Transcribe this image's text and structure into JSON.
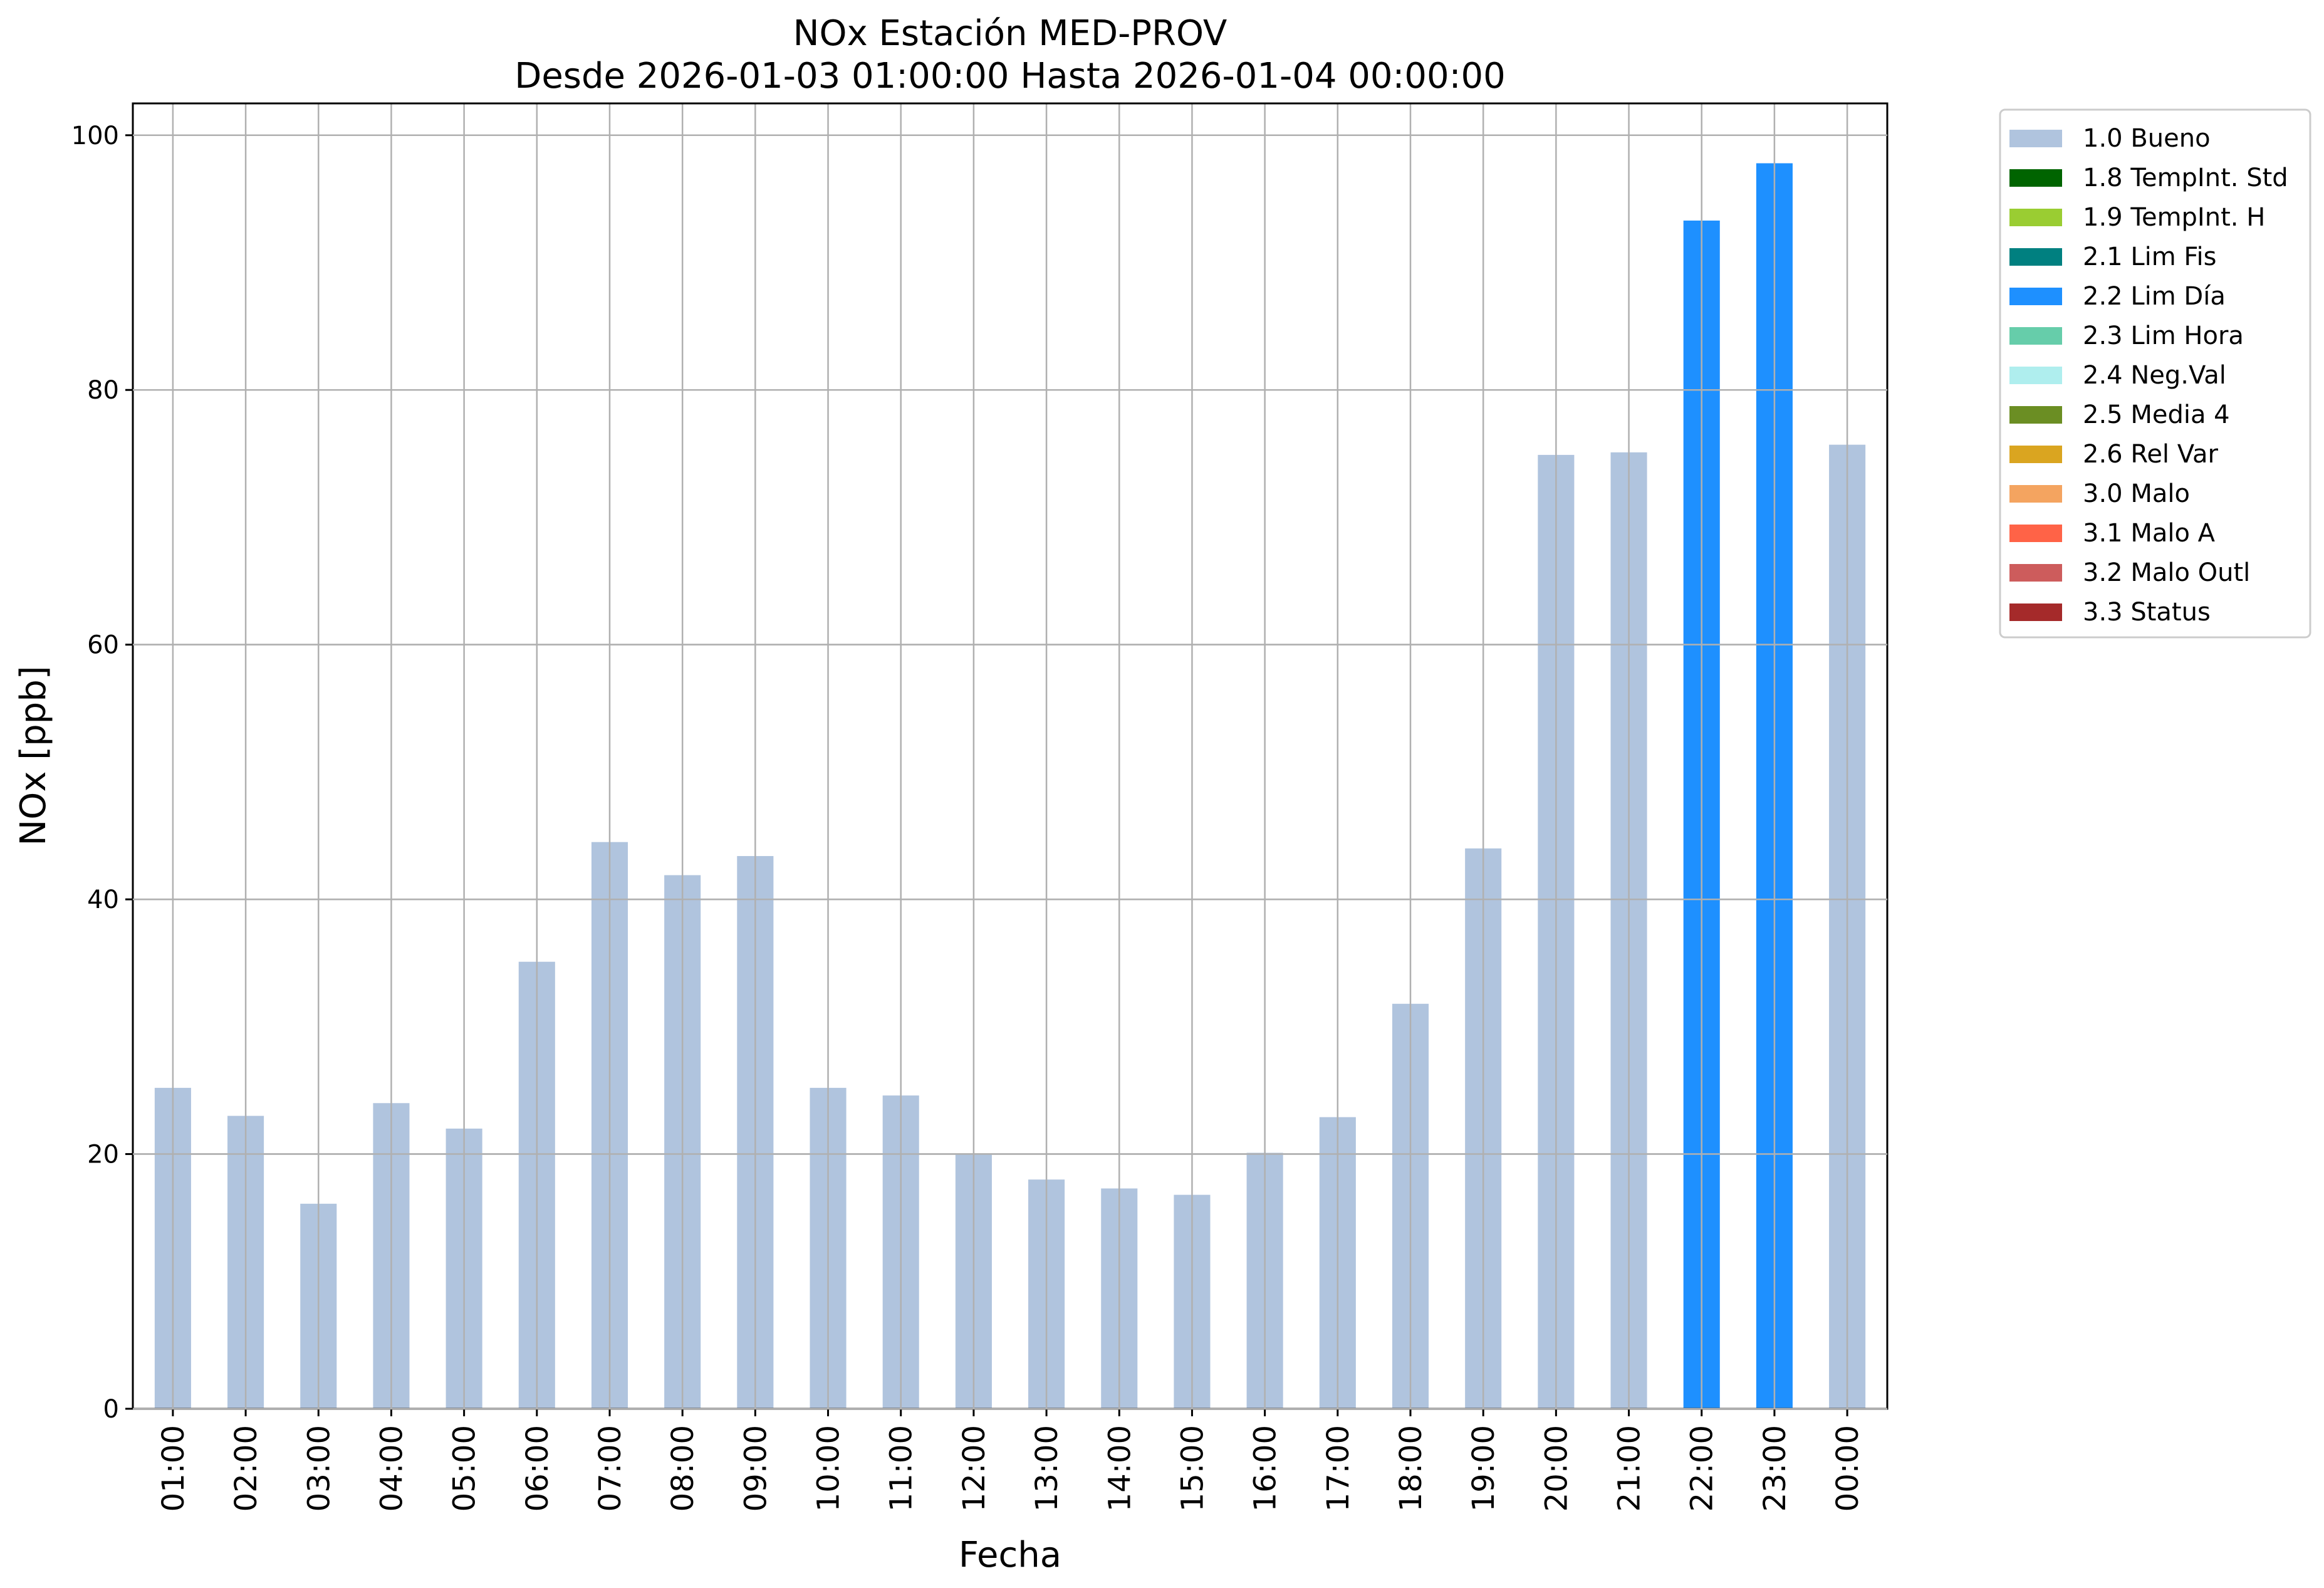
{
  "chart_data": {
    "type": "bar",
    "title": "NOx Estación MED-PROV",
    "subtitle": "Desde 2026-01-03 01:00:00 Hasta 2026-01-04 00:00:00",
    "xlabel": "Fecha",
    "ylabel": "NOx [ppb]",
    "ylim": [
      0,
      102.5
    ],
    "yticks": [
      0,
      20,
      40,
      60,
      80,
      100
    ],
    "grid": true,
    "legend_position": "outside-top-right",
    "categories": [
      "01:00",
      "02:00",
      "03:00",
      "04:00",
      "05:00",
      "06:00",
      "07:00",
      "08:00",
      "09:00",
      "10:00",
      "11:00",
      "12:00",
      "13:00",
      "14:00",
      "15:00",
      "16:00",
      "17:00",
      "18:00",
      "19:00",
      "20:00",
      "21:00",
      "22:00",
      "23:00",
      "00:00"
    ],
    "values": [
      25.2,
      23.0,
      16.1,
      24.0,
      22.0,
      35.1,
      44.5,
      41.9,
      43.4,
      25.2,
      24.6,
      20.0,
      18.0,
      17.3,
      16.8,
      20.1,
      22.9,
      31.8,
      44.0,
      74.9,
      75.1,
      93.3,
      97.8,
      75.7
    ],
    "flags": [
      "1.0",
      "1.0",
      "1.0",
      "1.0",
      "1.0",
      "1.0",
      "1.0",
      "1.0",
      "1.0",
      "1.0",
      "1.0",
      "1.0",
      "1.0",
      "1.0",
      "1.0",
      "1.0",
      "1.0",
      "1.0",
      "1.0",
      "1.0",
      "1.0",
      "2.2",
      "2.2",
      "1.0"
    ],
    "legend": [
      {
        "code": "1.0",
        "label": "1.0 Bueno",
        "color": "#b0c4de"
      },
      {
        "code": "1.8",
        "label": "1.8 TempInt. Std",
        "color": "#006400"
      },
      {
        "code": "1.9",
        "label": "1.9 TempInt. H",
        "color": "#9acd32"
      },
      {
        "code": "2.1",
        "label": "2.1 Lim Fis",
        "color": "#008080"
      },
      {
        "code": "2.2",
        "label": "2.2 Lim Día",
        "color": "#1e90ff"
      },
      {
        "code": "2.3",
        "label": "2.3 Lim Hora",
        "color": "#66cdaa"
      },
      {
        "code": "2.4",
        "label": "2.4 Neg.Val",
        "color": "#afeeee"
      },
      {
        "code": "2.5",
        "label": "2.5 Media 4",
        "color": "#6b8e23"
      },
      {
        "code": "2.6",
        "label": "2.6 Rel Var",
        "color": "#daa520"
      },
      {
        "code": "3.0",
        "label": "3.0 Malo",
        "color": "#f4a460"
      },
      {
        "code": "3.1",
        "label": "3.1 Malo A",
        "color": "#ff6347"
      },
      {
        "code": "3.2",
        "label": "3.2 Malo Outl",
        "color": "#cd5c5c"
      },
      {
        "code": "3.3",
        "label": "3.3 Status",
        "color": "#a52a2a"
      }
    ]
  }
}
